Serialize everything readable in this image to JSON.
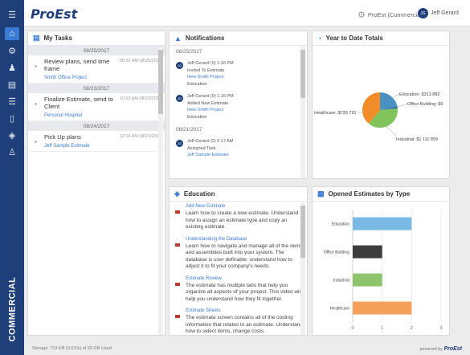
{
  "sidebar": {
    "brand_label": "COMMERCIAL",
    "items": [
      "menu-icon",
      "home-icon",
      "settings-icon",
      "users-icon",
      "estimates-icon",
      "list-icon",
      "reports-icon",
      "layers-icon",
      "user-icon"
    ]
  },
  "header": {
    "logo": "ProEst",
    "company": "ProEst (Commercial)",
    "user_initials": "JG",
    "user_name": "Jeff Gerard"
  },
  "tasks": {
    "title": "My Tasks",
    "groups": [
      {
        "date": "08/25/2017",
        "title": "Review plans, send time frame",
        "time": "08:22 AM 08/25/2017",
        "link": "Smith Office Project"
      },
      {
        "date": "08/23/2017",
        "title": "Finalize Estimate, send to Client",
        "time": "10:53 AM 08/23/2017",
        "link": "Personal Hospital"
      },
      {
        "date": "08/24/2017",
        "title": "Pick Up plans",
        "time": "12:16 AM 08/24/2017",
        "link": "Jeff Sample Estimate"
      }
    ]
  },
  "notifications": {
    "title": "Notifications",
    "dates": [
      "08/25/2017",
      "08/21/2017"
    ],
    "items": [
      {
        "who": "Jeff Gerard (9) 1:16 PM",
        "action": "Invited To Estimate",
        "link": "New Smith Project",
        "extra": "Education"
      },
      {
        "who": "Jeff Gerard (9) 1:16 PM",
        "action": "Added New Estimate",
        "link": "New Smith Project",
        "extra": "Education"
      },
      {
        "who": "Jeff Gerard (2) 5:17 AM",
        "action": "Assigned Task",
        "link": "Jeff Sample Estimate",
        "extra": ""
      }
    ]
  },
  "ytd": {
    "title": "Year to Date Totals",
    "colors": {
      "education": "#4a90c2",
      "office": "#2f6aa3",
      "industrial": "#7fc35a",
      "healthcare": "#f28c28"
    },
    "labels": {
      "education": "Education: $313 882",
      "office": "Office Building: $0",
      "industrial": "Industrial: $1 111 859",
      "healthcare": "Healthcare: $739 791"
    }
  },
  "education": {
    "title": "Education",
    "items": [
      {
        "title": "Add New Estimate",
        "desc": "Learn how to create a new estimate. Understand how to assign an estimate type and copy an existing estimate."
      },
      {
        "title": "Understanding the Database",
        "desc": "Learn how to navigate and manage all of the items and assemblies built into your system. The database is user definable: understand how to adjust it to fit your company's needs."
      },
      {
        "title": "Estimate Review",
        "desc": "The estimate has multiple tabs that help you organize all aspects of your project. This video will help you understand how they fit together."
      },
      {
        "title": "Estimate Sheets",
        "desc": "The estimate screen contains all of the costing information that relates to an estimate. Understand how to select items, change costs."
      }
    ]
  },
  "chart_data": {
    "type": "bar",
    "title": "Opened Estimates by Type",
    "orientation": "horizontal",
    "categories": [
      "Education",
      "Office Building",
      "Industrial",
      "Healthcare"
    ],
    "values": [
      2,
      1,
      1,
      2
    ],
    "colors": [
      "#7ab8e6",
      "#3d3d3d",
      "#8cc56b",
      "#f5a05a"
    ],
    "xlim": [
      0,
      3
    ],
    "xticks": [
      "0",
      "1",
      "2",
      "3"
    ],
    "grid": true
  },
  "footer": {
    "storage": "Storage: 713 KB (0.01%) of 20 GB Used",
    "powered": "powered by",
    "brand": "ProEst"
  }
}
